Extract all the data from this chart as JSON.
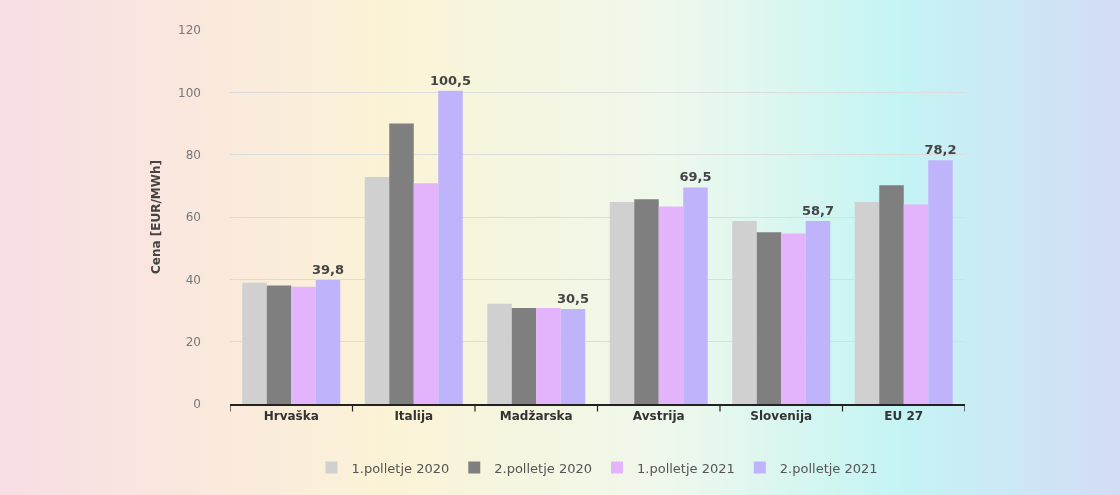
{
  "chart_data": {
    "type": "bar",
    "ylabel": "Cena [EUR/MWh]",
    "categories": [
      "Hrvaška",
      "Italija",
      "Madžarska",
      "Avstrija",
      "Slovenija",
      "EU 27"
    ],
    "series": [
      {
        "name": "1.polletje 2020",
        "color": "#d0d0d0",
        "values": [
          38.9,
          72.8,
          32.2,
          64.8,
          58.7,
          64.8
        ]
      },
      {
        "name": "2.polletje 2020",
        "color": "#7f7f7f",
        "values": [
          38.0,
          90.0,
          30.8,
          65.7,
          55.1,
          70.2
        ]
      },
      {
        "name": "1.polletje 2021",
        "color": "#e3b3fb",
        "values": [
          37.6,
          70.8,
          30.8,
          63.4,
          54.7,
          64.0
        ]
      },
      {
        "name": "2.polletje 2021",
        "color": "#bfb4fb",
        "values": [
          39.8,
          100.5,
          30.5,
          69.5,
          58.7,
          78.2
        ],
        "value_labels": [
          "39,8",
          "100,5",
          "30,5",
          "69,5",
          "58,7",
          "78,2"
        ]
      }
    ],
    "ylim": [
      0,
      120
    ],
    "yticks": [
      0,
      20,
      40,
      60,
      80,
      100,
      120
    ],
    "grid": "y",
    "legend": "bottom"
  }
}
